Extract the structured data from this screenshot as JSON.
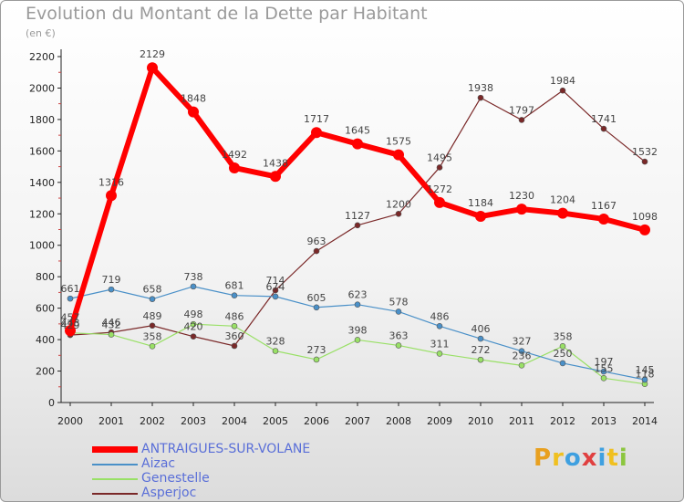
{
  "title": "Evolution du Montant de la Dette par Habitant",
  "subtitle": "(en €)",
  "logo": {
    "text": "Proxiti",
    "letter_colors": [
      "#e8a020",
      "#f0c020",
      "#3fa0e0",
      "#e04040",
      "#3fa0e0",
      "#f0c020",
      "#8cc63f"
    ]
  },
  "chart_data": {
    "type": "line",
    "x": [
      2000,
      2001,
      2002,
      2003,
      2004,
      2005,
      2006,
      2007,
      2008,
      2009,
      2010,
      2011,
      2012,
      2013,
      2014
    ],
    "ylim": [
      0,
      2200
    ],
    "yticks": [
      0,
      200,
      400,
      600,
      800,
      1000,
      1200,
      1400,
      1600,
      1800,
      2000,
      2200
    ],
    "grid": false,
    "legend_position": "bottom-left",
    "series": [
      {
        "name": "ANTRAIGUES-SUR-VOLANE",
        "color": "#ff0000",
        "values": [
          457,
          1316,
          2129,
          1848,
          1492,
          1438,
          1717,
          1645,
          1575,
          1272,
          1184,
          1230,
          1204,
          1167,
          1098
        ]
      },
      {
        "name": "Aizac",
        "color": "#4a90c8",
        "values": [
          661,
          719,
          658,
          738,
          681,
          674,
          605,
          623,
          578,
          486,
          406,
          327,
          250,
          197,
          145
        ]
      },
      {
        "name": "Genestelle",
        "color": "#99e066",
        "values": [
          443,
          432,
          358,
          498,
          486,
          328,
          273,
          398,
          363,
          311,
          272,
          236,
          358,
          155,
          118
        ]
      },
      {
        "name": "Asperjoc",
        "color": "#7a2828",
        "values": [
          429,
          446,
          489,
          420,
          360,
          714,
          963,
          1127,
          1200,
          1495,
          1938,
          1797,
          1984,
          1741,
          1532
        ]
      }
    ]
  }
}
